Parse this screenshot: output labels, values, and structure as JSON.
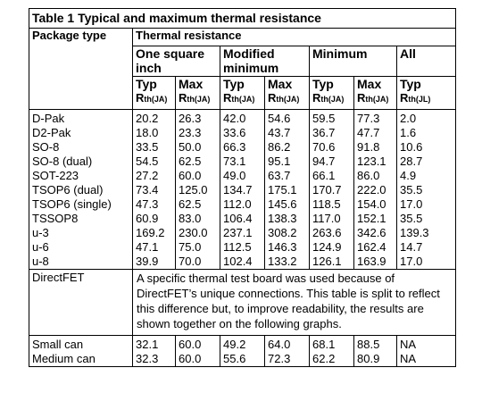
{
  "page_top_fragment": "",
  "table": {
    "title": "Table 1 Typical and maximum thermal resistance",
    "header": {
      "package_type": "Package type",
      "thermal_resistance": "Thermal resistance",
      "groups": [
        "One square inch",
        "Modified minimum",
        "Minimum",
        "All"
      ],
      "typ": "Typ",
      "max": "Max",
      "r_prefix": "R",
      "r_sub_ja": "th(JA)",
      "r_sub_jl": "th(JL)"
    },
    "rows": [
      {
        "pkg": "D-Pak",
        "v": [
          "20.2",
          "26.3",
          "42.0",
          "54.6",
          "59.5",
          "77.3",
          "2.0"
        ]
      },
      {
        "pkg": "D2-Pak",
        "v": [
          "18.0",
          "23.3",
          "33.6",
          "43.7",
          "36.7",
          "47.7",
          "1.6"
        ]
      },
      {
        "pkg": "SO-8",
        "v": [
          "33.5",
          "50.0",
          "66.3",
          "86.2",
          "70.6",
          "91.8",
          "10.6"
        ]
      },
      {
        "pkg": "SO-8 (dual)",
        "v": [
          "54.5",
          "62.5",
          "73.1",
          "95.1",
          "94.7",
          "123.1",
          "28.7"
        ]
      },
      {
        "pkg": "SOT-223",
        "v": [
          "27.2",
          "60.0",
          "49.0",
          "63.7",
          "66.1",
          "86.0",
          "4.9"
        ]
      },
      {
        "pkg": "TSOP6 (dual)",
        "v": [
          "73.4",
          "125.0",
          "134.7",
          "175.1",
          "170.7",
          "222.0",
          "35.5"
        ]
      },
      {
        "pkg": "TSOP6 (single)",
        "v": [
          "47.3",
          "62.5",
          "112.0",
          "145.6",
          "118.5",
          "154.0",
          "17.0"
        ]
      },
      {
        "pkg": "TSSOP8",
        "v": [
          "60.9",
          "83.0",
          "106.4",
          "138.3",
          "117.0",
          "152.1",
          "35.5"
        ]
      },
      {
        "pkg": "u-3",
        "v": [
          "169.2",
          "230.0",
          "237.1",
          "308.2",
          "263.6",
          "342.6",
          "139.3"
        ]
      },
      {
        "pkg": "u-6",
        "v": [
          "47.1",
          "75.0",
          "112.5",
          "146.3",
          "124.9",
          "162.4",
          "14.7"
        ]
      },
      {
        "pkg": "u-8",
        "v": [
          "39.9",
          "70.0",
          "102.4",
          "133.2",
          "126.1",
          "163.9",
          "17.0"
        ]
      }
    ],
    "directfet": {
      "pkg": "DirectFET",
      "note": "A specific thermal test board was used because of DirectFET’s unique connections. This table is split to reflect this difference but, to improve readability, the results are shown together on the following graphs."
    },
    "rows2": [
      {
        "pkg": "Small can",
        "v": [
          "32.1",
          "60.0",
          "49.2",
          "64.0",
          "68.1",
          "88.5",
          "NA"
        ]
      },
      {
        "pkg": "Medium can",
        "v": [
          "32.3",
          "60.0",
          "55.6",
          "72.3",
          "62.2",
          "80.9",
          "NA"
        ]
      }
    ]
  }
}
